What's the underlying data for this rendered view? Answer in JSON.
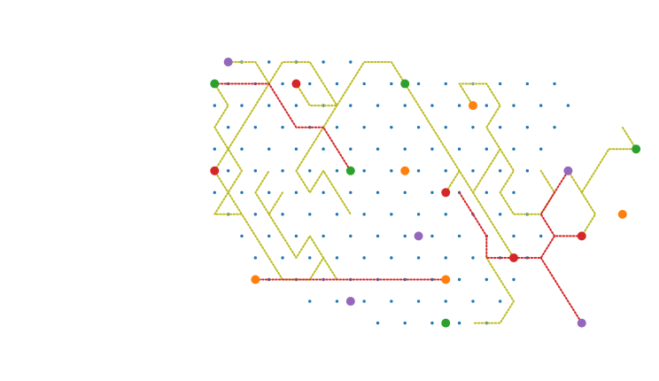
{
  "colors": {
    "background": "#ffffff",
    "grid_dot": "#1f77b4",
    "yellow_path": "#bcbd22",
    "red_path": "#d62728",
    "marker_green": "#2ca02c",
    "marker_red": "#d62728",
    "marker_orange": "#ff7f0e",
    "marker_purple": "#9467bd"
  },
  "grid": {
    "rows": [
      {
        "row": 0,
        "cols": [
          9,
          10,
          11,
          12,
          13,
          14,
          15,
          16,
          17,
          18,
          19
        ]
      },
      {
        "row": 1,
        "cols": [
          8,
          9,
          10,
          11,
          12,
          13,
          14,
          15,
          16,
          17,
          18,
          19,
          20,
          21,
          22,
          23,
          24,
          25,
          26,
          27,
          28,
          29,
          30,
          31,
          32,
          33
        ]
      },
      {
        "row": 2,
        "cols": [
          7,
          8,
          9,
          10,
          11,
          12,
          13,
          14,
          15,
          16,
          17,
          18,
          19,
          20,
          21,
          22,
          23,
          24,
          25,
          26,
          27,
          28,
          29,
          30,
          31,
          32,
          33,
          34
        ]
      },
      {
        "row": 3,
        "cols": [
          8,
          9,
          10,
          11,
          12,
          13,
          14,
          15,
          16,
          17,
          18,
          19,
          20,
          21,
          22,
          23,
          24,
          25,
          26,
          27,
          28,
          29,
          30,
          31,
          32,
          33
        ]
      },
      {
        "row": 4,
        "cols": [
          7,
          8,
          9,
          10,
          11,
          12,
          13,
          14,
          15,
          16,
          17,
          18,
          19,
          20,
          21,
          22,
          23,
          24,
          25,
          26,
          27,
          28,
          29,
          30,
          31,
          32
        ]
      },
      {
        "row": 5,
        "cols": [
          8,
          9,
          10,
          11,
          12,
          13,
          14,
          15,
          16,
          17,
          18,
          19,
          20,
          21,
          22,
          23,
          24,
          25,
          26,
          27,
          28,
          29,
          30,
          31,
          32
        ]
      },
      {
        "row": 6,
        "cols": [
          7,
          8,
          9,
          10,
          11,
          12,
          13,
          14,
          15,
          16,
          17,
          18,
          19,
          20,
          21,
          22,
          23,
          24,
          25,
          26,
          27,
          28,
          29,
          30,
          31
        ]
      },
      {
        "row": 7,
        "cols": [
          8,
          9,
          10,
          11,
          12,
          13,
          14,
          15,
          16,
          17,
          18,
          19,
          20,
          21,
          22,
          23,
          24,
          25,
          26,
          27,
          28,
          29,
          30,
          31,
          32
        ]
      },
      {
        "row": 8,
        "cols": [
          9,
          10,
          11,
          12,
          13,
          14,
          15,
          16,
          17,
          18,
          19,
          20,
          21,
          22,
          23,
          24,
          25,
          26,
          27,
          28,
          29,
          30,
          31,
          32
        ]
      },
      {
        "row": 9,
        "cols": [
          10,
          11,
          12,
          13,
          14,
          15,
          16,
          17,
          18,
          19,
          20,
          21,
          22,
          23,
          24,
          25,
          26,
          27,
          28,
          29,
          30,
          31
        ]
      },
      {
        "row": 10,
        "cols": [
          11,
          12,
          13,
          14,
          15,
          16,
          17,
          18,
          19,
          20,
          21,
          22,
          23,
          24,
          25,
          26,
          27,
          28,
          29,
          30
        ]
      },
      {
        "row": 11,
        "cols": [
          14,
          15,
          16,
          17,
          18,
          19,
          20,
          21,
          22,
          23,
          24,
          25,
          26,
          27,
          28,
          29
        ]
      },
      {
        "row": 12,
        "cols": [
          19,
          20,
          21,
          22,
          23,
          24,
          25,
          26,
          27,
          28,
          29
        ]
      }
    ]
  },
  "markers": [
    {
      "color": "purple",
      "row": 0,
      "col": 9
    },
    {
      "color": "green",
      "row": 1,
      "col": 8
    },
    {
      "color": "red",
      "row": 1,
      "col": 14
    },
    {
      "color": "green",
      "row": 1,
      "col": 22
    },
    {
      "color": "orange",
      "row": 2,
      "col": 27
    },
    {
      "color": "green",
      "row": 4,
      "col": 39
    },
    {
      "color": "red",
      "row": 5,
      "col": 8
    },
    {
      "color": "green",
      "row": 5,
      "col": 18
    },
    {
      "color": "orange",
      "row": 5,
      "col": 22
    },
    {
      "color": "purple",
      "row": 5,
      "col": 34
    },
    {
      "color": "red",
      "row": 6,
      "col": 25
    },
    {
      "color": "orange",
      "row": 7,
      "col": 38
    },
    {
      "color": "purple",
      "row": 8,
      "col": 23
    },
    {
      "color": "red",
      "row": 8,
      "col": 35
    },
    {
      "color": "red",
      "row": 9,
      "col": 30
    },
    {
      "color": "orange",
      "row": 10,
      "col": 11
    },
    {
      "color": "orange",
      "row": 10,
      "col": 25
    },
    {
      "color": "purple",
      "row": 11,
      "col": 18
    },
    {
      "color": "green",
      "row": 12,
      "col": 25
    },
    {
      "color": "purple",
      "row": 12,
      "col": 35
    }
  ],
  "red_paths": [
    [
      [
        1,
        8
      ],
      [
        1,
        12
      ],
      [
        2,
        13
      ],
      [
        3,
        14
      ],
      [
        3,
        16
      ],
      [
        4,
        17
      ],
      [
        5,
        18
      ]
    ],
    [
      [
        10,
        11
      ],
      [
        10,
        25
      ]
    ],
    [
      [
        6,
        26
      ],
      [
        7,
        27
      ],
      [
        8,
        28
      ],
      [
        9,
        28
      ],
      [
        9,
        32
      ],
      [
        8,
        33
      ],
      [
        8,
        35
      ]
    ],
    [
      [
        9,
        32
      ],
      [
        10,
        33
      ],
      [
        11,
        34
      ],
      [
        12,
        35
      ]
    ],
    [
      [
        8,
        33
      ],
      [
        7,
        32
      ],
      [
        6,
        33
      ],
      [
        5,
        34
      ]
    ]
  ],
  "yellow_paths": [
    [
      [
        0,
        9
      ],
      [
        0,
        11
      ],
      [
        1,
        12
      ],
      [
        2,
        11
      ],
      [
        3,
        10
      ],
      [
        4,
        9
      ],
      [
        5,
        10
      ],
      [
        6,
        9
      ],
      [
        7,
        8
      ],
      [
        7,
        10
      ],
      [
        8,
        11
      ],
      [
        9,
        12
      ],
      [
        10,
        13
      ],
      [
        10,
        15
      ],
      [
        9,
        16
      ],
      [
        10,
        17
      ]
    ],
    [
      [
        1,
        8
      ],
      [
        2,
        9
      ],
      [
        3,
        8
      ],
      [
        4,
        9
      ],
      [
        5,
        8
      ],
      [
        6,
        9
      ],
      [
        7,
        10
      ]
    ],
    [
      [
        1,
        14
      ],
      [
        2,
        15
      ],
      [
        2,
        17
      ],
      [
        1,
        18
      ],
      [
        0,
        19
      ],
      [
        0,
        21
      ],
      [
        1,
        22
      ]
    ],
    [
      [
        1,
        12
      ],
      [
        0,
        13
      ],
      [
        0,
        15
      ],
      [
        1,
        16
      ],
      [
        2,
        17
      ],
      [
        3,
        16
      ]
    ],
    [
      [
        1,
        22
      ],
      [
        2,
        23
      ],
      [
        3,
        24
      ],
      [
        4,
        25
      ],
      [
        5,
        26
      ],
      [
        6,
        27
      ],
      [
        5,
        28
      ],
      [
        4,
        29
      ],
      [
        3,
        28
      ],
      [
        2,
        29
      ],
      [
        1,
        28
      ],
      [
        1,
        26
      ],
      [
        2,
        27
      ]
    ],
    [
      [
        6,
        27
      ],
      [
        7,
        28
      ],
      [
        8,
        29
      ],
      [
        9,
        30
      ]
    ],
    [
      [
        5,
        26
      ],
      [
        6,
        25
      ]
    ],
    [
      [
        4,
        29
      ],
      [
        5,
        30
      ],
      [
        6,
        29
      ],
      [
        7,
        30
      ],
      [
        7,
        32
      ],
      [
        6,
        33
      ],
      [
        5,
        32
      ]
    ],
    [
      [
        5,
        34
      ],
      [
        6,
        35
      ],
      [
        5,
        36
      ],
      [
        4,
        37
      ],
      [
        4,
        39
      ],
      [
        3,
        38
      ]
    ],
    [
      [
        6,
        35
      ],
      [
        7,
        36
      ],
      [
        8,
        35
      ]
    ],
    [
      [
        9,
        28
      ],
      [
        10,
        29
      ],
      [
        11,
        30
      ],
      [
        12,
        29
      ],
      [
        12,
        27
      ]
    ],
    [
      [
        3,
        16
      ],
      [
        4,
        15
      ],
      [
        5,
        14
      ],
      [
        6,
        15
      ],
      [
        5,
        16
      ],
      [
        6,
        17
      ],
      [
        7,
        18
      ]
    ],
    [
      [
        7,
        12
      ],
      [
        8,
        13
      ],
      [
        9,
        14
      ],
      [
        8,
        15
      ],
      [
        9,
        16
      ]
    ],
    [
      [
        6,
        13
      ],
      [
        7,
        12
      ],
      [
        6,
        11
      ],
      [
        5,
        12
      ]
    ]
  ]
}
